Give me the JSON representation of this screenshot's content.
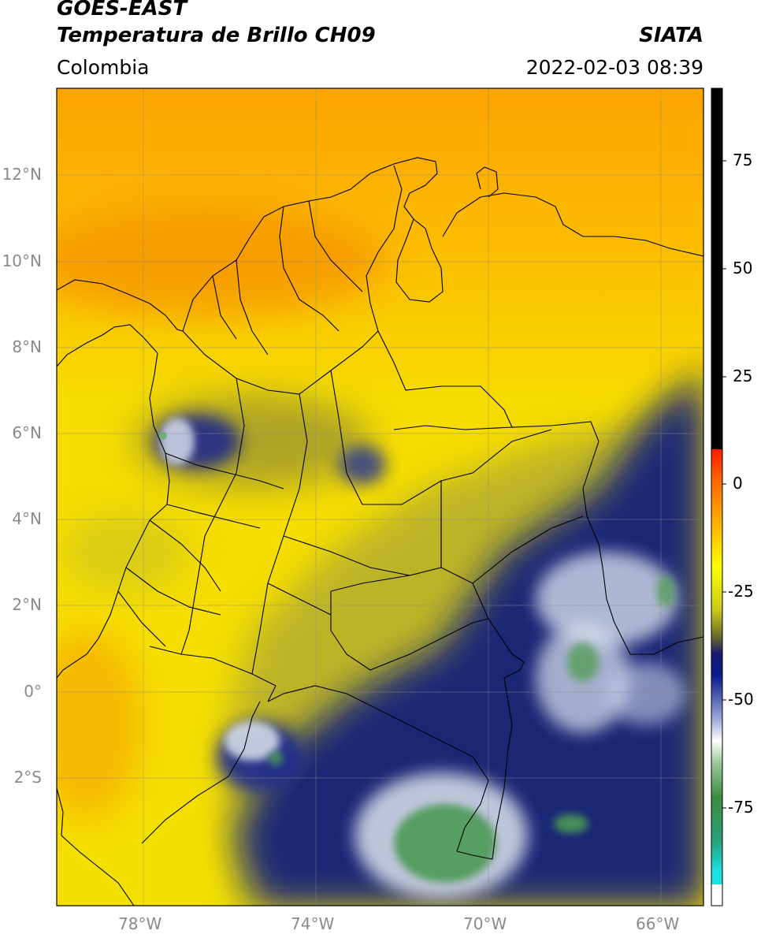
{
  "header": {
    "satellite": "GOES-EAST",
    "product": "Temperatura de Brillo CH09",
    "region": "Colombia",
    "agency": "SIATA",
    "datetime": "2022-02-03 08:39"
  },
  "map": {
    "lon_ticks": [
      "78°W",
      "74°W",
      "70°W",
      "66°W"
    ],
    "lat_ticks": [
      "12°N",
      "10°N",
      "8°N",
      "6°N",
      "4°N",
      "2°N",
      "0°",
      "2°S"
    ],
    "gridlines": true
  },
  "colorbar": {
    "ticks": [
      "75",
      "50",
      "25",
      "0",
      "-25",
      "-50",
      "-75"
    ],
    "colors": {
      "black": "#000000",
      "red": "#ff2200",
      "orange": "#ff9900",
      "yellow": "#ffff00",
      "olive": "#7d7d24",
      "navy": "#0a1a8c",
      "white": "#ffffff",
      "green": "#3f8c3f",
      "cyan": "#1fe0e0"
    }
  },
  "colors": {
    "sea_orange": "#f79a00",
    "yellow": "#f5e400",
    "olive": "#a8a535",
    "navy": "#0c1b7a",
    "cold_white": "#e6ecf5",
    "cold_green": "#4c9a55"
  }
}
